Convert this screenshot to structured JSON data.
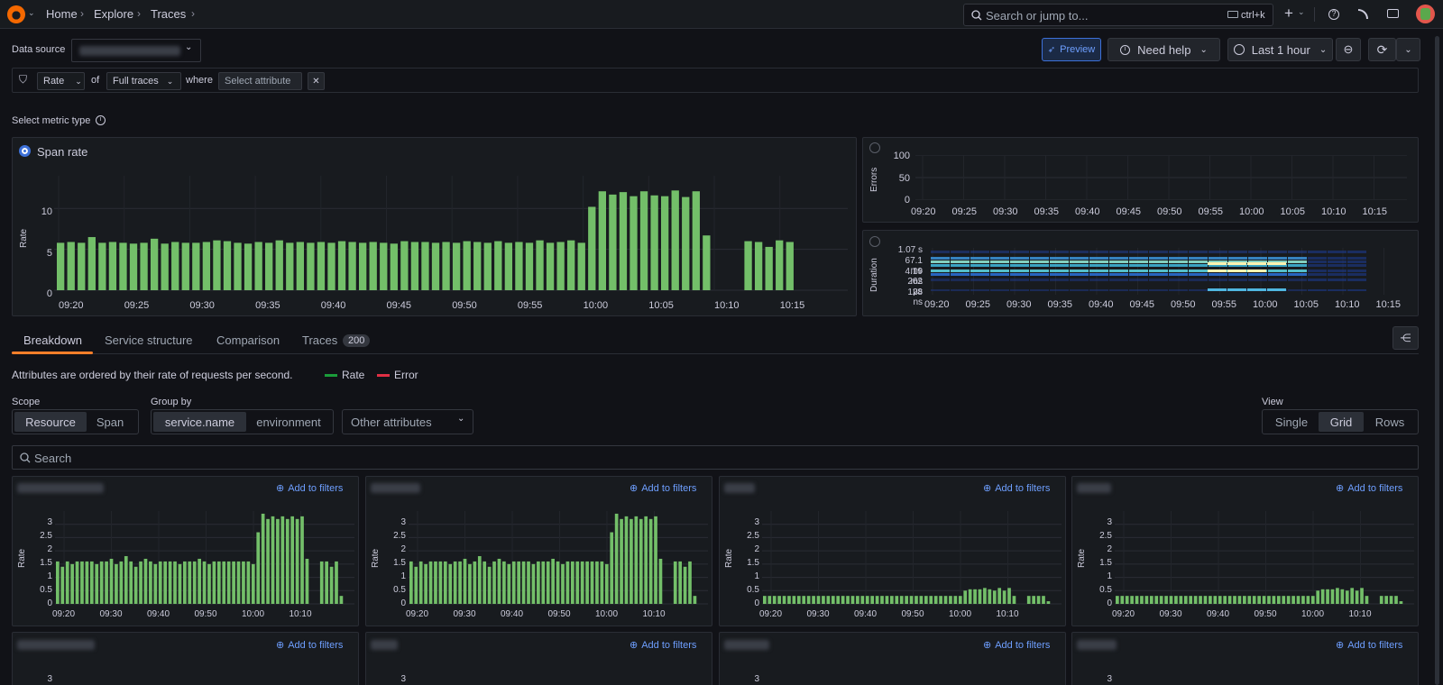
{
  "breadcrumbs": [
    "Home",
    "Explore",
    "Traces"
  ],
  "search": {
    "placeholder": "Search or jump to...",
    "shortcut": "ctrl+k"
  },
  "toolbar": {
    "data_source_label": "Data source",
    "preview_label": "Preview",
    "need_help_label": "Need help",
    "time_range": "Last 1 hour"
  },
  "filter": {
    "metric": "Rate",
    "of": "of",
    "scope": "Full traces",
    "where": "where",
    "attribute_placeholder": "Select attribute"
  },
  "metric_type_label": "Select metric type",
  "span_rate": {
    "title": "Span rate",
    "ylabel": "Rate",
    "yticks": [
      "10",
      "5",
      "0"
    ],
    "xticks": [
      "09:20",
      "09:25",
      "09:30",
      "09:35",
      "09:40",
      "09:45",
      "09:50",
      "09:55",
      "10:00",
      "10:05",
      "10:10",
      "10:15"
    ]
  },
  "errors_panel": {
    "ylabel": "Errors",
    "yticks": [
      "100",
      "50",
      "0"
    ],
    "xticks": [
      "09:20",
      "09:25",
      "09:30",
      "09:35",
      "09:40",
      "09:45",
      "09:50",
      "09:55",
      "10:00",
      "10:05",
      "10:10",
      "10:15"
    ]
  },
  "duration_panel": {
    "ylabel": "Duration",
    "yticks": [
      "1.07 s",
      "67.1 ms",
      "4.19 ms",
      "262 µs",
      "128 ns"
    ],
    "xticks": [
      "09:20",
      "09:25",
      "09:30",
      "09:35",
      "09:40",
      "09:45",
      "09:50",
      "09:55",
      "10:00",
      "10:05",
      "10:10",
      "10:15"
    ]
  },
  "tabs": [
    {
      "label": "Breakdown",
      "active": true
    },
    {
      "label": "Service structure"
    },
    {
      "label": "Comparison"
    },
    {
      "label": "Traces",
      "badge": "200"
    }
  ],
  "breakdown": {
    "description": "Attributes are ordered by their rate of requests per second.",
    "legend_rate": "Rate",
    "legend_error": "Error",
    "scope_label": "Scope",
    "scope_options": [
      "Resource",
      "Span"
    ],
    "groupby_label": "Group by",
    "groupby_options": [
      "service.name",
      "environment"
    ],
    "other_attributes": "Other attributes",
    "view_label": "View",
    "view_options": [
      "Single",
      "Grid",
      "Rows"
    ],
    "search_placeholder": "Search"
  },
  "small_panel": {
    "add_to_filters": "Add to filters",
    "ylabel": "Rate",
    "yticks": [
      "3",
      "2.5",
      "2",
      "1.5",
      "1",
      "0.5",
      "0"
    ],
    "xticks": [
      "09:20",
      "09:30",
      "09:40",
      "09:50",
      "10:00",
      "10:10"
    ],
    "bottom_ytick": "3"
  },
  "colors": {
    "bar": "#73bf69",
    "accent": "#ff7f2a",
    "link": "#6e9fff",
    "error": "#f2495c"
  },
  "chart_data": [
    {
      "type": "bar",
      "title": "Span rate",
      "ylabel": "Rate",
      "ylim": [
        0,
        14
      ],
      "values": [
        5.8,
        5.9,
        5.8,
        6.5,
        5.8,
        5.9,
        5.8,
        5.7,
        5.8,
        6.3,
        5.7,
        5.9,
        5.8,
        5.8,
        5.9,
        6.1,
        6.0,
        5.8,
        5.7,
        5.9,
        5.8,
        6.1,
        5.8,
        5.9,
        5.8,
        5.9,
        5.8,
        6.0,
        5.9,
        5.8,
        5.9,
        5.8,
        5.7,
        6.0,
        5.9,
        5.9,
        5.8,
        5.9,
        5.8,
        6.0,
        5.9,
        5.8,
        6.0,
        5.8,
        5.9,
        5.8,
        6.1,
        5.8,
        5.9,
        6.1,
        5.8,
        10.2,
        12.1,
        11.7,
        12.0,
        11.5,
        12.1,
        11.6,
        11.5,
        12.2,
        11.4,
        12.1,
        6.7,
        null,
        null,
        null,
        6.0,
        5.9,
        5.3,
        6.1,
        5.9
      ]
    },
    {
      "type": "bar",
      "ylabel": "Rate",
      "ylim": [
        0,
        3.4
      ],
      "values": [
        1.6,
        1.4,
        1.6,
        1.5,
        1.6,
        1.6,
        1.6,
        1.6,
        1.5,
        1.6,
        1.6,
        1.7,
        1.5,
        1.6,
        1.8,
        1.6,
        1.4,
        1.6,
        1.7,
        1.6,
        1.5,
        1.6,
        1.6,
        1.6,
        1.6,
        1.5,
        1.6,
        1.6,
        1.6,
        1.7,
        1.6,
        1.5,
        1.6,
        1.6,
        1.6,
        1.6,
        1.6,
        1.6,
        1.6,
        1.6,
        1.5,
        2.7,
        3.4,
        3.2,
        3.3,
        3.2,
        3.3,
        3.2,
        3.3,
        3.2,
        3.3,
        1.7,
        null,
        null,
        1.6,
        1.6,
        1.4,
        1.6,
        0.3
      ]
    },
    {
      "type": "bar",
      "ylabel": "Rate",
      "ylim": [
        0,
        3.4
      ],
      "values": [
        0.3,
        0.3,
        0.3,
        0.3,
        0.3,
        0.3,
        0.3,
        0.3,
        0.3,
        0.3,
        0.3,
        0.3,
        0.3,
        0.3,
        0.3,
        0.3,
        0.3,
        0.3,
        0.3,
        0.3,
        0.3,
        0.3,
        0.3,
        0.3,
        0.3,
        0.3,
        0.3,
        0.3,
        0.3,
        0.3,
        0.3,
        0.3,
        0.3,
        0.3,
        0.3,
        0.3,
        0.3,
        0.3,
        0.3,
        0.3,
        0.3,
        0.5,
        0.55,
        0.55,
        0.55,
        0.6,
        0.55,
        0.5,
        0.6,
        0.5,
        0.6,
        0.3,
        null,
        null,
        0.3,
        0.3,
        0.3,
        0.3,
        0.1
      ]
    }
  ]
}
